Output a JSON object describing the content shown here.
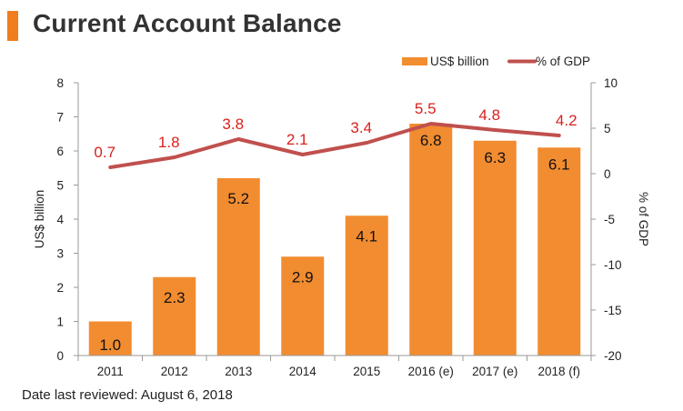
{
  "header": {
    "title": "Current Account Balance"
  },
  "footer": {
    "note": "Date last reviewed: August 6, 2018"
  },
  "colors": {
    "accent": "#f07d1e",
    "bar": "#f28c30",
    "line": "#c0504d",
    "line_label": "#d8211e"
  },
  "chart_data": {
    "type": "bar",
    "categories": [
      "2011",
      "2012",
      "2013",
      "2014",
      "2015",
      "2016 (e)",
      "2017 (e)",
      "2018 (f)"
    ],
    "series": [
      {
        "name": "US$ billion",
        "type": "bar",
        "axis": "left",
        "values": [
          1.0,
          2.3,
          5.2,
          2.9,
          4.1,
          6.8,
          6.3,
          6.1
        ],
        "labels": [
          "1.0",
          "2.3",
          "5.2",
          "2.9",
          "4.1",
          "6.8",
          "6.3",
          "6.1"
        ]
      },
      {
        "name": "% of GDP",
        "type": "line",
        "axis": "right",
        "values": [
          0.7,
          1.8,
          3.8,
          2.1,
          3.4,
          5.5,
          4.8,
          4.2
        ],
        "labels": [
          "0.7",
          "1.8",
          "3.8",
          "2.1",
          "3.4",
          "5.5",
          "4.8",
          "4.2"
        ]
      }
    ],
    "ylabel": "US$ billion",
    "y2label": "% of GDP",
    "ylim": [
      0,
      8
    ],
    "y2lim": [
      -20,
      10
    ],
    "yticks": [
      "0",
      "1",
      "2",
      "3",
      "4",
      "5",
      "6",
      "7",
      "8"
    ],
    "y2ticks": [
      "-20",
      "-15",
      "-10",
      "-5",
      "0",
      "5",
      "10"
    ],
    "grid": false,
    "legend": "top-right"
  }
}
